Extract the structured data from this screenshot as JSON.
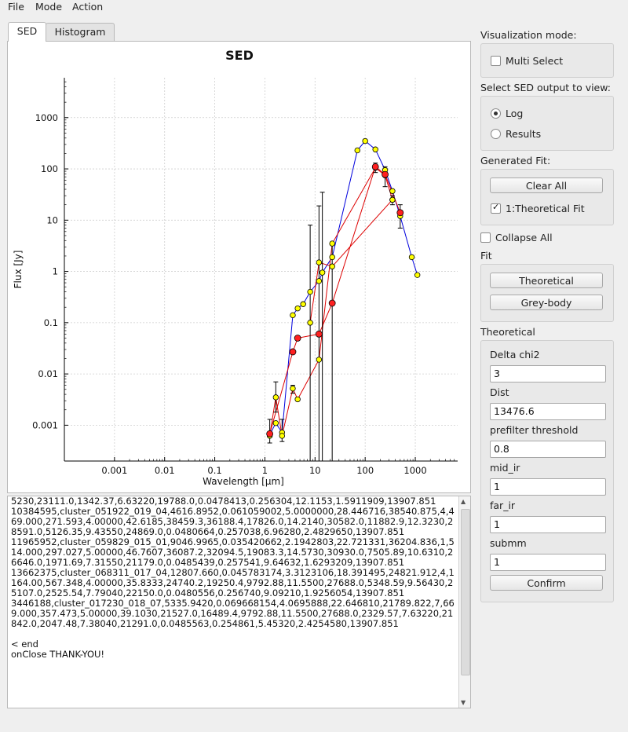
{
  "menu": {
    "file": "File",
    "mode": "Mode",
    "action": "Action"
  },
  "tabs": {
    "sed": "SED",
    "histogram": "Histogram"
  },
  "plot": {
    "title": "SED",
    "xlabel": "Wavelength [µm]",
    "ylabel": "Flux [Jy]",
    "x_ticks": [
      "0.001",
      "0.01",
      "0.1",
      "1",
      "10",
      "100",
      "1000"
    ],
    "y_ticks": [
      "0.001",
      "0.01",
      "0.1",
      "1",
      "10",
      "100",
      "1000"
    ]
  },
  "chart_data": {
    "type": "scatter",
    "title": "SED",
    "xlabel": "Wavelength [µm]",
    "ylabel": "Flux [Jy]",
    "xscale": "log",
    "yscale": "log",
    "xlim": [
      0.0001,
      7000
    ],
    "ylim": [
      0.0002,
      6000
    ],
    "grid": true,
    "x_ticks": [
      0.001,
      0.01,
      0.1,
      1,
      10,
      100,
      1000
    ],
    "y_ticks": [
      0.001,
      0.01,
      0.1,
      1,
      10,
      100,
      1000
    ],
    "series": [
      {
        "color": "#0000dd",
        "points": [
          [
            1.25,
            0.00065
          ],
          [
            1.65,
            0.0011
          ],
          [
            2.2,
            0.00072
          ],
          [
            3.6,
            0.14
          ],
          [
            4.5,
            0.19
          ],
          [
            5.8,
            0.23
          ],
          [
            8,
            0.4
          ],
          [
            12,
            0.65
          ],
          [
            14,
            0.95
          ],
          [
            22,
            1.9
          ],
          [
            70,
            230
          ],
          [
            100,
            350
          ],
          [
            160,
            240
          ],
          [
            250,
            95
          ],
          [
            350,
            37
          ],
          [
            500,
            12
          ],
          [
            850,
            1.9
          ],
          [
            1100,
            0.85
          ]
        ],
        "marker_color": "#ffff00"
      },
      {
        "color": "#dd0000",
        "points": [
          [
            1.25,
            0.00062
          ],
          [
            1.65,
            0.0035
          ],
          [
            2.2,
            0.00062
          ],
          [
            3.6,
            0.0052
          ],
          [
            4.5,
            0.0032
          ],
          [
            12,
            0.019
          ],
          [
            22,
            3.5
          ],
          [
            160,
            105
          ],
          [
            250,
            75
          ],
          [
            350,
            25
          ]
        ],
        "marker_color": "#ffff00"
      },
      {
        "color": "#dd0000",
        "points": [
          [
            1.25,
            0.00068
          ],
          [
            3.6,
            0.027
          ],
          [
            4.5,
            0.05
          ],
          [
            12,
            0.06
          ],
          [
            22,
            0.24
          ],
          [
            160,
            110
          ],
          [
            250,
            78
          ],
          [
            500,
            14
          ]
        ],
        "marker_color": "#ff2020"
      },
      {
        "color": "#dd0000",
        "points": [
          [
            8,
            0.1
          ],
          [
            12,
            1.5
          ],
          [
            22,
            1.25
          ],
          [
            350,
            25
          ]
        ],
        "marker_color": "#ffff00"
      }
    ],
    "error_bars": [
      [
        1.25,
        0.00045,
        0.0013
      ],
      [
        1.65,
        0.0018,
        0.007
      ],
      [
        2.2,
        0.00048,
        0.0013
      ],
      [
        3.6,
        0.0042,
        0.006
      ],
      [
        8,
        0.0002,
        8
      ],
      [
        12,
        0.0002,
        19
      ],
      [
        14,
        0.0002,
        35
      ],
      [
        22,
        0.0002,
        3.5
      ],
      [
        160,
        85,
        130
      ],
      [
        250,
        45,
        110
      ],
      [
        350,
        20,
        30
      ],
      [
        500,
        7,
        20
      ]
    ]
  },
  "log": {
    "text": "5230,23111.0,1342.37,6.63220,19788.0,0.0478413,0.256304,12.1153,1.5911909,13907.851\n10384595,cluster_051922_019_04,4616.8952,0.061059002,5.0000000,28.446716,38540.875,4,469.000,271.593,4.00000,42.6185,38459.3,36188.4,17826.0,14.2140,30582.0,11882.9,12.3230,28591.0,5126.35,9.43550,24869.0,0.0480664,0.257038,6.96280,2.4829650,13907.851\n11965952,cluster_059829_015_01,9046.9965,0.035420662,2.1942803,22.721331,36204.836,1,514.000,297.027,5.00000,46.7607,36087.2,32094.5,19083.3,14.5730,30930.0,7505.89,10.6310,26646.0,1971.69,7.31550,21179.0,0.0485439,0.257541,9.64632,1.6293209,13907.851\n13662375,cluster_068311_017_04,12807.660,0.045783174,3.3123106,18.391495,24821.912,4,1164.00,567.348,4.00000,35.8333,24740.2,19250.4,9792.88,11.5500,27688.0,5348.59,9.56430,25107.0,2525.54,7.79040,22150.0,0.0480556,0.256740,9.09210,1.9256054,13907.851\n3446188,cluster_017230_018_07,5335.9420,0.069668154,4.0695888,22.646810,21789.822,7,669.000,357.473,5.00000,39.1030,21527.0,16489.4,9792.88,11.5500,27688.0,2329.57,7.63220,21842.0,2047.48,7.38040,21291.0,0.0485563,0.254861,5.45320,2.4254580,13907.851\n\n< end\nonClose THANK-YOU!"
  },
  "sidebar": {
    "vis_mode_label": "Visualization mode:",
    "multi_select": "Multi Select",
    "sed_output_label": "Select SED output to view:",
    "log_option": "Log",
    "results_option": "Results",
    "generated_fit_label": "Generated Fit:",
    "clear_all": "Clear All",
    "fit_item": "1:Theoretical Fit",
    "collapse_all": "Collapse All",
    "fit_label": "Fit",
    "theoretical_btn": "Theoretical",
    "greybody_btn": "Grey-body",
    "theoretical_label": "Theoretical",
    "fields": [
      {
        "label": "Delta chi2",
        "value": "3"
      },
      {
        "label": "Dist",
        "value": "13476.6"
      },
      {
        "label": "prefilter threshold",
        "value": "0.8"
      },
      {
        "label": "mid_ir",
        "value": "1"
      },
      {
        "label": "far_ir",
        "value": "1"
      },
      {
        "label": "submm",
        "value": "1"
      }
    ],
    "confirm": "Confirm"
  }
}
